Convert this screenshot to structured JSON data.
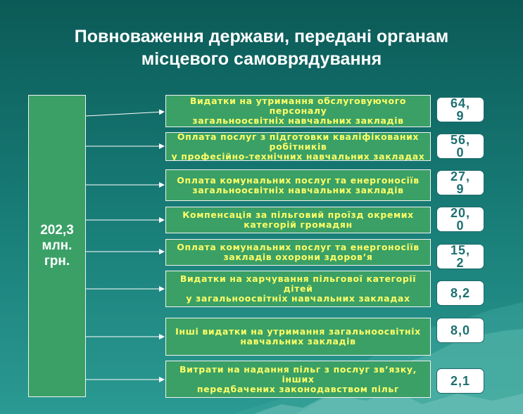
{
  "title": {
    "line1": "Повноваження держави, передані органам",
    "line2": "місцевого самоврядування"
  },
  "total": {
    "text": "202,3\nмлн.\nгрн."
  },
  "items": [
    {
      "label": "Видатки на утримання обслуговуючого\nперсоналу\nзагальноосвітніх навчальних закладів",
      "value": "64,\n9"
    },
    {
      "label": "Оплата послуг з підготовки кваліфікованих\nробітників\nу професійно-технічних навчальних закладах",
      "value": "56,\n0"
    },
    {
      "label": "Оплата комунальних послуг та енергоносіїв\nзагальноосвітніх навчальних закладів",
      "value": "27,\n9"
    },
    {
      "label": "Компенсація за пільговий проїзд окремих\nкатегорій громадян",
      "value": "20,\n0"
    },
    {
      "label": "Оплата комунальних послуг та енергоносіїв\nзакладів охорони здоров’я",
      "value": "15,\n2"
    },
    {
      "label": "Видатки на харчування пільгової категорії\nдітей\nу загальноосвітніх навчальних закладах",
      "value": "8,2"
    },
    {
      "label": "Інші видатки на утримання загальноосвітніх\nнавчальних закладів",
      "value": "8,0"
    },
    {
      "label": "Витрати на надання пільг з послуг зв’язку,\nінших\nпередбачених законодавством пільг",
      "value": "2,1"
    }
  ]
}
